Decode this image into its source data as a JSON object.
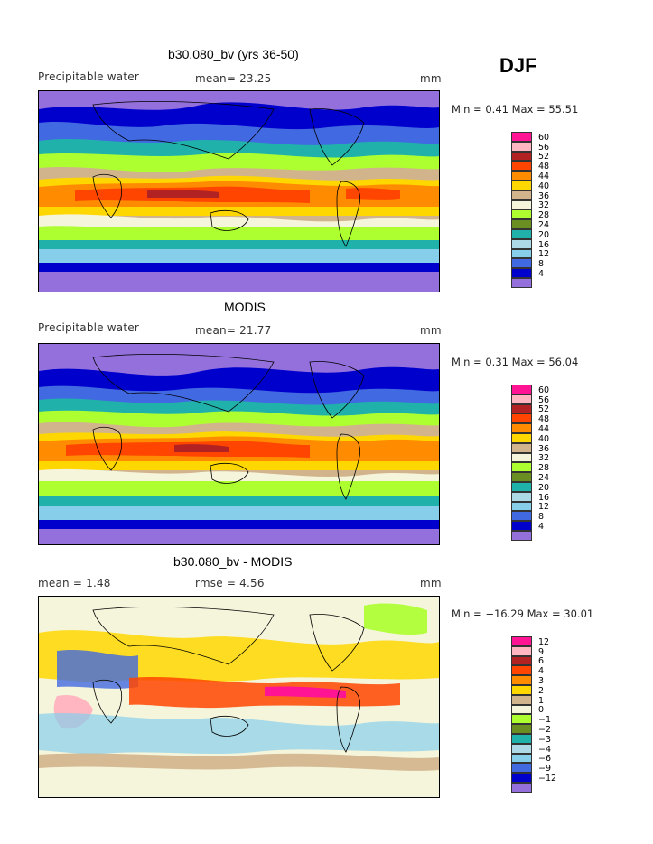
{
  "season": "DJF",
  "panels": [
    {
      "title": "b30.080_bv (yrs 36-50)",
      "left_label": "Precipitable water",
      "mid_label": "mean=  23.25",
      "right_label": "mm",
      "minmax": "Min =   0.41  Max =  55.51",
      "colorbar_levels": [
        "60",
        "56",
        "52",
        "48",
        "44",
        "40",
        "36",
        "32",
        "28",
        "24",
        "20",
        "16",
        "12",
        "8",
        "4"
      ],
      "colorbar_colors": [
        "#ff1493",
        "#ffb6c1",
        "#b22222",
        "#ff4500",
        "#ff8c00",
        "#ffd700",
        "#d2b48c",
        "#f5f5dc",
        "#adff2f",
        "#6b8e23",
        "#20b2aa",
        "#add8e6",
        "#87ceeb",
        "#4169e1",
        "#0000cd",
        "#9370db"
      ]
    },
    {
      "title": "MODIS",
      "left_label": "Precipitable water",
      "mid_label": "mean=  21.77",
      "right_label": "mm",
      "minmax": "Min =   0.31  Max =  56.04",
      "colorbar_levels": [
        "60",
        "56",
        "52",
        "48",
        "44",
        "40",
        "36",
        "32",
        "28",
        "24",
        "20",
        "16",
        "12",
        "8",
        "4"
      ],
      "colorbar_colors": [
        "#ff1493",
        "#ffb6c1",
        "#b22222",
        "#ff4500",
        "#ff8c00",
        "#ffd700",
        "#d2b48c",
        "#f5f5dc",
        "#adff2f",
        "#6b8e23",
        "#20b2aa",
        "#add8e6",
        "#87ceeb",
        "#4169e1",
        "#0000cd",
        "#9370db"
      ]
    },
    {
      "title": "b30.080_bv - MODIS",
      "left_label": "mean =   1.48",
      "mid_label": "rmse =   4.56",
      "right_label": "mm",
      "minmax": "Min = −16.29  Max =  30.01",
      "colorbar_levels": [
        "12",
        "9",
        "6",
        "4",
        "3",
        "2",
        "1",
        "0",
        "−1",
        "−2",
        "−3",
        "−4",
        "−6",
        "−9",
        "−12"
      ],
      "colorbar_colors": [
        "#ff1493",
        "#ffb6c1",
        "#b22222",
        "#ff4500",
        "#ff8c00",
        "#ffd700",
        "#d2b48c",
        "#f5f5dc",
        "#adff2f",
        "#6b8e23",
        "#20b2aa",
        "#add8e6",
        "#87ceeb",
        "#4169e1",
        "#0000cd",
        "#9370db"
      ]
    }
  ],
  "chart_data": [
    {
      "type": "heatmap",
      "title": "b30.080_bv (yrs 36-50)",
      "variable": "Precipitable water",
      "units": "mm",
      "mean": 23.25,
      "min": 0.41,
      "max": 55.51,
      "contour_levels": [
        4,
        8,
        12,
        16,
        20,
        24,
        28,
        32,
        36,
        40,
        44,
        48,
        52,
        56,
        60
      ]
    },
    {
      "type": "heatmap",
      "title": "MODIS",
      "variable": "Precipitable water",
      "units": "mm",
      "mean": 21.77,
      "min": 0.31,
      "max": 56.04,
      "contour_levels": [
        4,
        8,
        12,
        16,
        20,
        24,
        28,
        32,
        36,
        40,
        44,
        48,
        52,
        56,
        60
      ]
    },
    {
      "type": "heatmap",
      "title": "b30.080_bv - MODIS",
      "units": "mm",
      "mean": 1.48,
      "rmse": 4.56,
      "min": -16.29,
      "max": 30.01,
      "contour_levels": [
        -12,
        -9,
        -6,
        -4,
        -3,
        -2,
        -1,
        0,
        1,
        2,
        3,
        4,
        6,
        9,
        12
      ]
    }
  ]
}
